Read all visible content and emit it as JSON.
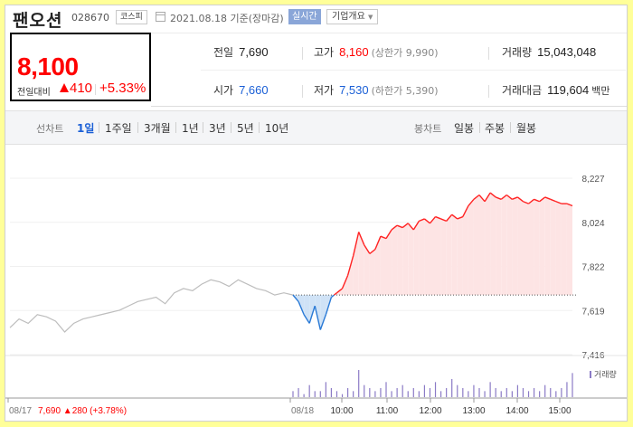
{
  "stock": {
    "name": "팬오션",
    "code": "028670",
    "market": "코스피",
    "date_text": "2021.08.18 기준(장마감)",
    "realtime_label": "실시간",
    "corp_info_label": "기업개요",
    "price": "8,100",
    "change_label": "전일대비",
    "change_amount": "410",
    "change_pct": "+5.33%"
  },
  "stats": {
    "prev_close": {
      "label": "전일",
      "value": "7,690"
    },
    "high": {
      "label": "고가",
      "value": "8,160",
      "note": "(상한가 9,990)"
    },
    "volume": {
      "label": "거래량",
      "value": "15,043,048"
    },
    "open": {
      "label": "시가",
      "value": "7,660"
    },
    "low": {
      "label": "저가",
      "value": "7,530",
      "note": "(하한가 5,390)"
    },
    "amount": {
      "label": "거래대금",
      "value": "119,604",
      "unit": "백만"
    }
  },
  "tabs": {
    "line_label": "선차트",
    "line": [
      "1일",
      "1주일",
      "3개월",
      "1년",
      "3년",
      "5년",
      "10년"
    ],
    "active": "1일",
    "candle_label": "봉차트",
    "candle": [
      "일봉",
      "주봉",
      "월봉"
    ]
  },
  "chart": {
    "y_ticks": [
      "8,227",
      "8,024",
      "7,822",
      "7,619",
      "7,416"
    ],
    "x_labels": [
      "08/17",
      "08/18",
      "10:00",
      "11:00",
      "12:00",
      "13:00",
      "14:00",
      "15:00"
    ],
    "volume_legend": "거래량",
    "prev_day_summary": "08/17  7,690 ▲280 (+3.78%)"
  },
  "chart_data": {
    "type": "line",
    "ylim": [
      7416,
      8227
    ],
    "reference_value": 7690,
    "series": [
      {
        "values_prev_day": [
          7540,
          7580,
          7560,
          7600,
          7590,
          7570,
          7520,
          7560,
          7580,
          7590,
          7600,
          7610,
          7620,
          7640,
          7660,
          7670,
          7680,
          7650,
          7700,
          7720,
          7710,
          7740,
          7760,
          7750,
          7730,
          7760,
          7740,
          7720,
          7710,
          7690,
          7700,
          7690
        ],
        "values_today": [
          7690,
          7660,
          7600,
          7560,
          7640,
          7530,
          7600,
          7680,
          7700,
          7720,
          7780,
          7870,
          7980,
          7920,
          7880,
          7900,
          7960,
          7950,
          7990,
          8010,
          8000,
          8020,
          7990,
          8030,
          8040,
          8020,
          8050,
          8040,
          8030,
          8060,
          8040,
          8050,
          8100,
          8130,
          8150,
          8120,
          8160,
          8140,
          8130,
          8150,
          8130,
          8140,
          8120,
          8110,
          8130,
          8120,
          8140,
          8130,
          8120,
          8110,
          8110,
          8100
        ],
        "volume": [
          2,
          3,
          1,
          4,
          2,
          2,
          5,
          3,
          2,
          1,
          3,
          2,
          9,
          4,
          3,
          2,
          3,
          5,
          2,
          3,
          4,
          2,
          3,
          2,
          4,
          3,
          5,
          2,
          3,
          6,
          4,
          3,
          2,
          4,
          3,
          2,
          5,
          3,
          2,
          3,
          2,
          4,
          3,
          2,
          3,
          2,
          4,
          3,
          2,
          3,
          5,
          8
        ]
      }
    ],
    "colors": {
      "prev_day": "#bdbdbd",
      "up": "#f22",
      "down": "#2a7ad6",
      "up_fill": "#fde4e4",
      "down_fill": "#cfe2f6",
      "volume": "#8b7bc6"
    }
  }
}
